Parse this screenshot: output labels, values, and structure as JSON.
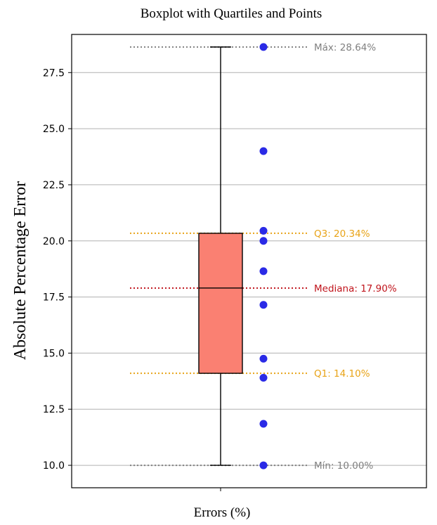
{
  "chart_data": {
    "type": "box",
    "title": "Boxplot with Quartiles and Points",
    "xlabel": "Errors (%)",
    "ylabel": "Absolute Percentage Error",
    "ylim": [
      9.0,
      29.2
    ],
    "yticks": [
      10.0,
      12.5,
      15.0,
      17.5,
      20.0,
      22.5,
      25.0,
      27.5
    ],
    "ytick_labels": [
      "10.0",
      "12.5",
      "15.0",
      "17.5",
      "20.0",
      "22.5",
      "25.0",
      "27.5"
    ],
    "grid": "horizontal",
    "box": {
      "min": 10.0,
      "q1": 14.1,
      "median": 17.9,
      "q3": 20.34,
      "max": 28.64,
      "fill": "#fa8072"
    },
    "points": [
      28.64,
      24.0,
      20.45,
      20.0,
      18.65,
      17.15,
      14.75,
      13.9,
      11.85,
      10.0
    ],
    "point_color": "#2a2ae6",
    "annotations": [
      {
        "label": "Máx: 28.64%",
        "value": 28.64,
        "color": "#808080"
      },
      {
        "label": "Q3: 20.34%",
        "value": 20.34,
        "color": "#e8a317"
      },
      {
        "label": "Mediana: 17.90%",
        "value": 17.9,
        "color": "#c0141c"
      },
      {
        "label": "Q1: 14.10%",
        "value": 14.1,
        "color": "#e8a317"
      },
      {
        "label": "Mín: 10.00%",
        "value": 10.0,
        "color": "#808080"
      }
    ]
  }
}
